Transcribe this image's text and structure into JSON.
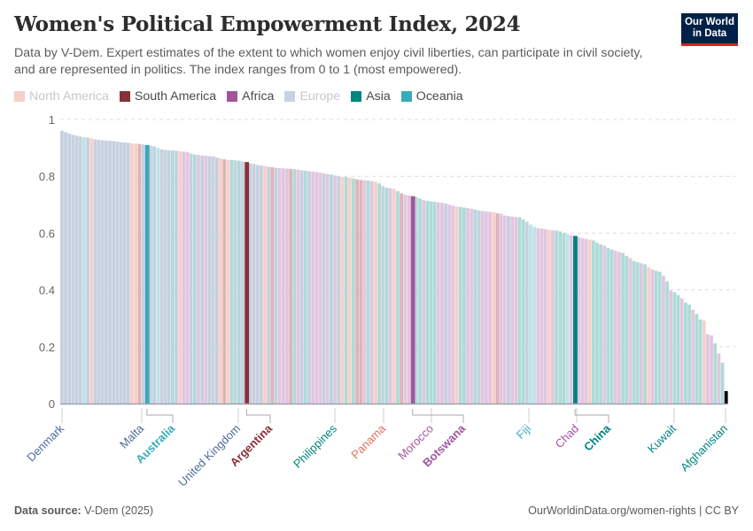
{
  "header": {
    "title": "Women's Political Empowerment Index, 2024",
    "subtitle": "Data by V-Dem. Expert estimates of the extent to which women enjoy civil liberties, can participate in civil society, and are represented in politics. The index ranges from 0 to 1 (most empowered).",
    "logo_line1": "Our World",
    "logo_line2": "in Data"
  },
  "legend": [
    {
      "key": "NA",
      "label": "North America",
      "color": "#f6cfc8",
      "text_color": "#c8c8c8",
      "muted": true
    },
    {
      "key": "SA",
      "label": "South America",
      "color": "#883039",
      "text_color": "#4a4a4a",
      "muted": false
    },
    {
      "key": "AF",
      "label": "Africa",
      "color": "#a2559c",
      "text_color": "#4a4a4a",
      "muted": false
    },
    {
      "key": "EU",
      "label": "Europe",
      "color": "#c8d1e1",
      "text_color": "#c8c8c8",
      "muted": true
    },
    {
      "key": "AS",
      "label": "Asia",
      "color": "#00847e",
      "text_color": "#4a4a4a",
      "muted": false
    },
    {
      "key": "OC",
      "label": "Oceania",
      "color": "#38aaba",
      "text_color": "#4a4a4a",
      "muted": false
    }
  ],
  "chart_data": {
    "type": "bar",
    "title": "Women's Political Empowerment Index, 2024",
    "xlabel": "",
    "ylabel": "",
    "ylim": [
      0,
      1
    ],
    "yticks": [
      0,
      0.2,
      0.4,
      0.6,
      0.8,
      1
    ],
    "ytick_labels": [
      "0",
      "0.2",
      "0.4",
      "0.6",
      "0.8",
      "1"
    ],
    "grid": "horizontal-dashed",
    "sorted": "descending",
    "region_colors_faded": {
      "NA": "#f7d0c9",
      "SA": "#dcb4b8",
      "AF": "#e2c6e0",
      "EU": "#c6d0df",
      "AS": "#aedbd7",
      "OC": "#bfe3e8"
    },
    "region_colors_strong": {
      "NA": "#e56e5a",
      "SA": "#883039",
      "AF": "#a2559c",
      "EU": "#4c6a9c",
      "AS": "#00847e",
      "OC": "#38aaba"
    },
    "regions": [
      "EU",
      "EU",
      "EU",
      "EU",
      "EU",
      "EU",
      "OC",
      "EU",
      "NA",
      "EU",
      "EU",
      "EU",
      "EU",
      "EU",
      "EU",
      "EU",
      "EU",
      "EU",
      "EU",
      "NA",
      "NA",
      "SA",
      "EU",
      "EU",
      "EU",
      "EU",
      "OC",
      "EU",
      "EU",
      "EU",
      "AS",
      "EU",
      "NA",
      "AF",
      "AF",
      "EU",
      "AS",
      "AF",
      "EU",
      "AF",
      "EU",
      "EU",
      "EU",
      "NA",
      "SA",
      "NA",
      "AS",
      "EU",
      "AS",
      "EU",
      "AF",
      "EU",
      "EU",
      "EU",
      "EU",
      "NA",
      "EU",
      "SA",
      "EU",
      "AF",
      "AF",
      "AF",
      "SA",
      "AS",
      "AF",
      "EU",
      "AS",
      "EU",
      "AF",
      "AF",
      "AF",
      "EU",
      "AF",
      "AS",
      "AF",
      "EU",
      "NA",
      "AS",
      "NA",
      "AS",
      "SA",
      "SA",
      "AF",
      "AS",
      "AF",
      "NA",
      "AS",
      "EU",
      "AS",
      "AF",
      "NA",
      "AS",
      "SA",
      "AF",
      "AF",
      "AS",
      "AS",
      "AS",
      "AF",
      "AS",
      "AS",
      "AS",
      "AF",
      "AF",
      "EU",
      "AF",
      "AF",
      "NA",
      "AS",
      "AS",
      "AF",
      "AF",
      "AS",
      "EU",
      "AF",
      "AF",
      "AF",
      "NA",
      "SA",
      "AF",
      "AF",
      "EU",
      "AF",
      "AF",
      "AS",
      "AS",
      "EU",
      "OC",
      "OC",
      "AF",
      "AF",
      "AF",
      "NA",
      "AF",
      "AS",
      "AS",
      "AS",
      "OC",
      "AF",
      "AF",
      "AF",
      "AF",
      "AF",
      "NA",
      "AS",
      "AS",
      "AS",
      "AF",
      "AS",
      "AS",
      "AF",
      "AF",
      "AS",
      "AS",
      "AF",
      "AS",
      "AS",
      "AF",
      "AS",
      "NA",
      "AF",
      "AS",
      "AS",
      "AF",
      "AS",
      "AF",
      "AS",
      "AS",
      "AF",
      "AS",
      "AS",
      "AF",
      "AS",
      "AS",
      "NA",
      "AF",
      "AF",
      "AS",
      "AF",
      "AS"
    ],
    "values": [
      0.96,
      0.955,
      0.95,
      0.946,
      0.943,
      0.94,
      0.938,
      0.936,
      0.934,
      0.93,
      0.928,
      0.927,
      0.926,
      0.925,
      0.924,
      0.922,
      0.92,
      0.919,
      0.918,
      0.916,
      0.915,
      0.914,
      0.912,
      0.91,
      0.908,
      0.905,
      0.9,
      0.895,
      0.893,
      0.892,
      0.891,
      0.89,
      0.888,
      0.887,
      0.885,
      0.88,
      0.877,
      0.875,
      0.873,
      0.872,
      0.871,
      0.87,
      0.866,
      0.863,
      0.86,
      0.858,
      0.857,
      0.856,
      0.855,
      0.852,
      0.85,
      0.845,
      0.843,
      0.84,
      0.838,
      0.836,
      0.834,
      0.832,
      0.83,
      0.829,
      0.828,
      0.827,
      0.826,
      0.825,
      0.823,
      0.821,
      0.82,
      0.818,
      0.816,
      0.815,
      0.813,
      0.81,
      0.808,
      0.806,
      0.803,
      0.8,
      0.798,
      0.797,
      0.795,
      0.792,
      0.789,
      0.787,
      0.786,
      0.785,
      0.783,
      0.78,
      0.775,
      0.765,
      0.76,
      0.758,
      0.756,
      0.748,
      0.74,
      0.735,
      0.733,
      0.73,
      0.727,
      0.722,
      0.716,
      0.714,
      0.712,
      0.71,
      0.708,
      0.707,
      0.704,
      0.7,
      0.697,
      0.694,
      0.692,
      0.69,
      0.688,
      0.686,
      0.683,
      0.68,
      0.678,
      0.676,
      0.675,
      0.674,
      0.67,
      0.668,
      0.662,
      0.66,
      0.658,
      0.657,
      0.656,
      0.648,
      0.64,
      0.63,
      0.622,
      0.618,
      0.616,
      0.614,
      0.612,
      0.61,
      0.609,
      0.606,
      0.6,
      0.597,
      0.593,
      0.59,
      0.586,
      0.582,
      0.58,
      0.577,
      0.574,
      0.566,
      0.56,
      0.556,
      0.548,
      0.542,
      0.538,
      0.534,
      0.53,
      0.52,
      0.512,
      0.502,
      0.498,
      0.494,
      0.49,
      0.48,
      0.472,
      0.468,
      0.464,
      0.45,
      0.43,
      0.398,
      0.392,
      0.382,
      0.37,
      0.356,
      0.348,
      0.33,
      0.315,
      0.296,
      0.292,
      0.244,
      0.24,
      0.212,
      0.176,
      0.144,
      0.044
    ],
    "highlighted": [
      {
        "name": "Australia",
        "region": "OC",
        "value": 0.91
      },
      {
        "name": "Argentina",
        "region": "SA",
        "value": 0.85
      },
      {
        "name": "Botswana",
        "region": "AF",
        "value": 0.73
      },
      {
        "name": "China",
        "region": "AS",
        "value": 0.59
      }
    ],
    "labels": [
      {
        "name": "Denmark",
        "region": "EU",
        "bold": false,
        "elbow": false
      },
      {
        "name": "Malta",
        "region": "EU",
        "bold": false,
        "elbow": false
      },
      {
        "name": "Australia",
        "region": "OC",
        "bold": true,
        "elbow": true
      },
      {
        "name": "United Kingdom",
        "region": "EU",
        "bold": false,
        "elbow": false
      },
      {
        "name": "Argentina",
        "region": "SA",
        "bold": true,
        "elbow": true
      },
      {
        "name": "Philippines",
        "region": "AS",
        "bold": false,
        "elbow": false
      },
      {
        "name": "Panama",
        "region": "NA",
        "bold": false,
        "elbow": false
      },
      {
        "name": "Morocco",
        "region": "AF",
        "bold": false,
        "elbow": false
      },
      {
        "name": "Botswana",
        "region": "AF",
        "bold": true,
        "elbow": true
      },
      {
        "name": "Fiji",
        "region": "OC",
        "bold": false,
        "elbow": false
      },
      {
        "name": "Chad",
        "region": "AF",
        "bold": false,
        "elbow": false
      },
      {
        "name": "China",
        "region": "AS",
        "bold": true,
        "elbow": true
      },
      {
        "name": "Kuwait",
        "region": "AS",
        "bold": false,
        "elbow": false
      },
      {
        "name": "Afghanistan",
        "region": "AS",
        "bold": false,
        "elbow": false
      }
    ]
  },
  "footer": {
    "source_label": "Data source:",
    "source_value": "V-Dem (2025)",
    "credit": "OurWorldinData.org/women-rights | CC BY"
  }
}
